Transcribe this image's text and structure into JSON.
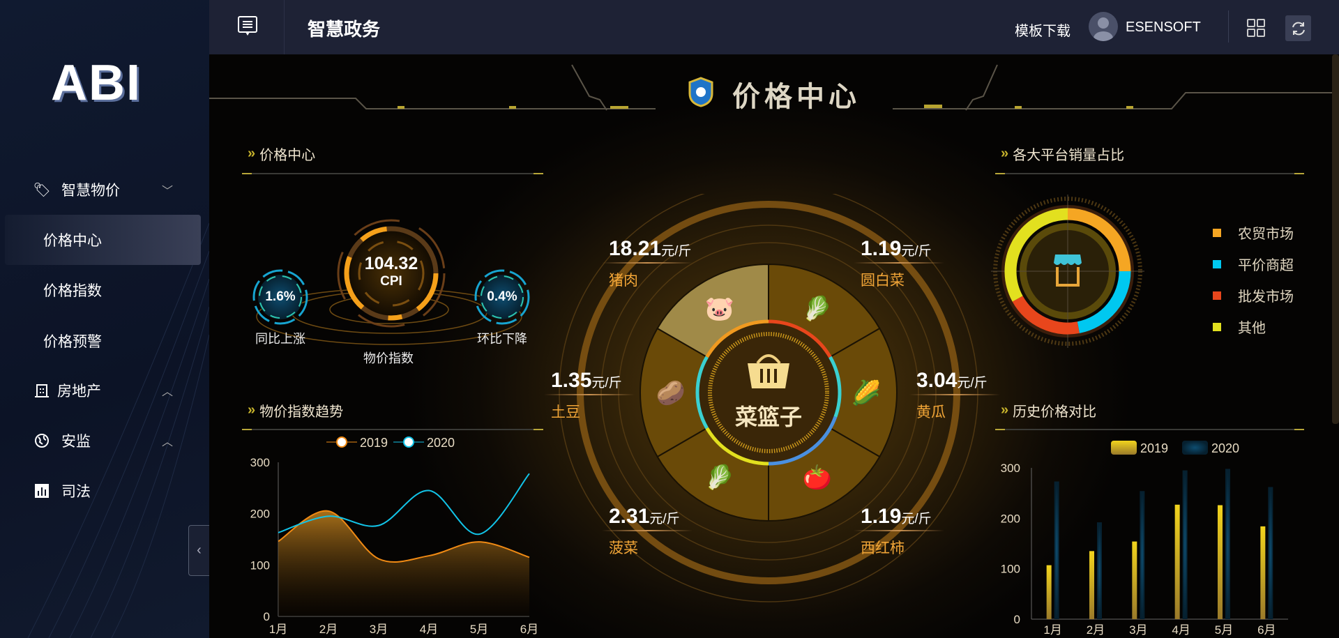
{
  "app": {
    "logo": "ABI",
    "title": "智慧政务"
  },
  "topbar": {
    "template_download": "模板下载",
    "username": "ESENSOFT",
    "icons": [
      "list-icon",
      "avatar",
      "grid-icon",
      "refresh-icon"
    ]
  },
  "sidebar": {
    "items": [
      {
        "label": "智慧物价",
        "icon": "tag-icon",
        "expanded": true,
        "children": [
          {
            "label": "价格中心",
            "active": true
          },
          {
            "label": "价格指数"
          },
          {
            "label": "价格预警"
          }
        ]
      },
      {
        "label": "房地产",
        "icon": "building-icon"
      },
      {
        "label": "安监",
        "icon": "globe-icon"
      },
      {
        "label": "司法",
        "icon": "bar-chart-icon"
      }
    ]
  },
  "banner": {
    "title": "价格中心"
  },
  "price_center": {
    "title": "价格中心",
    "cpi_value": "104.32",
    "cpi_label": "CPI",
    "cpi_caption": "物价指数",
    "yoy_value": "1.6%",
    "yoy_label": "同比上涨",
    "mom_value": "0.4%",
    "mom_label": "环比下降"
  },
  "basket": {
    "center_label": "菜篮子",
    "unit": "元/斤",
    "items": [
      {
        "name": "猪肉",
        "price": "18.21",
        "icon": "piggy-bank-icon"
      },
      {
        "name": "圆白菜",
        "price": "1.19",
        "icon": "cabbage-icon"
      },
      {
        "name": "土豆",
        "price": "1.35",
        "icon": "potato-icon"
      },
      {
        "name": "黄瓜",
        "price": "3.04",
        "icon": "cucumber-icon"
      },
      {
        "name": "菠菜",
        "price": "2.31",
        "icon": "spinach-icon"
      },
      {
        "name": "西红柿",
        "price": "1.19",
        "icon": "tomato-icon"
      }
    ]
  },
  "platform_share": {
    "title": "各大平台销量占比",
    "center_icon": "shop-icon",
    "legend": [
      {
        "name": "农贸市场",
        "color": "#f5a623",
        "share": 25
      },
      {
        "name": "平价商超",
        "color": "#00c8f0",
        "share": 22
      },
      {
        "name": "批发市场",
        "color": "#e8461c",
        "share": 20
      },
      {
        "name": "其他",
        "color": "#e2e01f",
        "share": 33
      }
    ]
  },
  "chart_data": [
    {
      "type": "area",
      "title": "物价指数趋势",
      "categories": [
        "1月",
        "2月",
        "3月",
        "4月",
        "5月",
        "6月"
      ],
      "ylim": [
        0,
        300
      ],
      "yticks": [
        "0",
        "100",
        "200",
        "300"
      ],
      "legend": "top",
      "series": [
        {
          "name": "2019",
          "color": "#f08a14",
          "values": [
            146,
            205,
            112,
            118,
            145,
            115
          ]
        },
        {
          "name": "2020",
          "color": "#12c4e8",
          "values": [
            163,
            195,
            177,
            245,
            160,
            278
          ]
        }
      ]
    },
    {
      "type": "bar",
      "title": "历史价格对比",
      "categories": [
        "1月",
        "2月",
        "3月",
        "4月",
        "5月",
        "6月"
      ],
      "ylim": [
        0,
        300
      ],
      "yticks": [
        "0",
        "100",
        "200",
        "300"
      ],
      "legend": "top",
      "series": [
        {
          "name": "2019",
          "color": "#f2d41d",
          "values": [
            107,
            135,
            154,
            227,
            226,
            184
          ]
        },
        {
          "name": "2020",
          "color": "#5aa5f5",
          "values": [
            273,
            192,
            254,
            295,
            298,
            262
          ]
        }
      ]
    }
  ]
}
